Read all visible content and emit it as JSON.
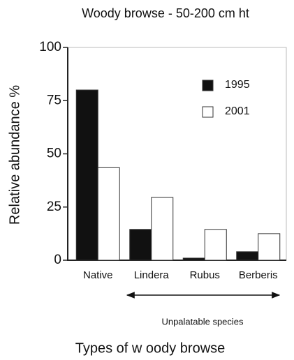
{
  "chart_data": {
    "type": "bar",
    "title": "Woody browse - 50-200 cm ht",
    "y_label": "Relative abundance %",
    "x_label": "Types of w oody browse",
    "annotation": "Unpalatable species",
    "categories": [
      "Native",
      "Lindera",
      "Rubus",
      "Berberis"
    ],
    "series": [
      {
        "name": "1995",
        "color": "#111111",
        "values": [
          80,
          14.5,
          1,
          4
        ]
      },
      {
        "name": "2001",
        "color": "#ffffff",
        "values": [
          43.5,
          29.5,
          14.5,
          12.5
        ]
      }
    ],
    "ylim": [
      0,
      100
    ],
    "yticks": [
      0,
      25,
      50,
      75,
      100
    ],
    "grid": false,
    "legend": "upper right"
  }
}
